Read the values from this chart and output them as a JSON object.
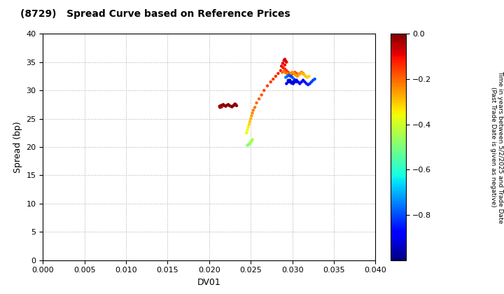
{
  "title": "(8729)   Spread Curve based on Reference Prices",
  "xlabel": "DV01",
  "ylabel": "Spread (bp)",
  "xlim": [
    0.0,
    0.04
  ],
  "ylim": [
    0,
    40
  ],
  "xticks": [
    0.0,
    0.005,
    0.01,
    0.015,
    0.02,
    0.025,
    0.03,
    0.035,
    0.04
  ],
  "yticks": [
    0,
    5,
    10,
    15,
    20,
    25,
    30,
    35,
    40
  ],
  "colorbar_label": "Time in years between 5/2/2025 and Trade Date\n(Past Trade Date is given as negative)",
  "cmap": "jet",
  "vmin": -1.0,
  "vmax": 0.0,
  "colorbar_ticks": [
    0.0,
    -0.2,
    -0.4,
    -0.6,
    -0.8
  ],
  "points": [
    {
      "dv01": 0.02125,
      "spread": 27.2,
      "time": -0.01
    },
    {
      "dv01": 0.0214,
      "spread": 27.3,
      "time": -0.01
    },
    {
      "dv01": 0.02155,
      "spread": 27.4,
      "time": -0.005
    },
    {
      "dv01": 0.0217,
      "spread": 27.5,
      "time": -0.005
    },
    {
      "dv01": 0.02185,
      "spread": 27.3,
      "time": -0.01
    },
    {
      "dv01": 0.022,
      "spread": 27.2,
      "time": -0.015
    },
    {
      "dv01": 0.02215,
      "spread": 27.4,
      "time": -0.01
    },
    {
      "dv01": 0.0223,
      "spread": 27.5,
      "time": -0.005
    },
    {
      "dv01": 0.02245,
      "spread": 27.3,
      "time": -0.01
    },
    {
      "dv01": 0.0226,
      "spread": 27.2,
      "time": -0.02
    },
    {
      "dv01": 0.02275,
      "spread": 27.1,
      "time": -0.02
    },
    {
      "dv01": 0.0229,
      "spread": 27.3,
      "time": -0.015
    },
    {
      "dv01": 0.023,
      "spread": 27.4,
      "time": -0.01
    },
    {
      "dv01": 0.0231,
      "spread": 27.6,
      "time": -0.005
    },
    {
      "dv01": 0.0232,
      "spread": 27.5,
      "time": -0.01
    },
    {
      "dv01": 0.0233,
      "spread": 27.3,
      "time": -0.02
    },
    {
      "dv01": 0.0213,
      "spread": 27.0,
      "time": -0.03
    },
    {
      "dv01": 0.0215,
      "spread": 27.1,
      "time": -0.04
    },
    {
      "dv01": 0.0248,
      "spread": 20.5,
      "time": -0.44
    },
    {
      "dv01": 0.02495,
      "spread": 20.8,
      "time": -0.45
    },
    {
      "dv01": 0.0251,
      "spread": 21.1,
      "time": -0.46
    },
    {
      "dv01": 0.0249,
      "spread": 20.6,
      "time": -0.47
    },
    {
      "dv01": 0.02505,
      "spread": 20.9,
      "time": -0.45
    },
    {
      "dv01": 0.0247,
      "spread": 20.4,
      "time": -0.48
    },
    {
      "dv01": 0.0246,
      "spread": 20.3,
      "time": -0.49
    },
    {
      "dv01": 0.0252,
      "spread": 21.3,
      "time": -0.44
    },
    {
      "dv01": 0.0245,
      "spread": 22.5,
      "time": -0.38
    },
    {
      "dv01": 0.0246,
      "spread": 23.0,
      "time": -0.36
    },
    {
      "dv01": 0.0247,
      "spread": 23.5,
      "time": -0.34
    },
    {
      "dv01": 0.0248,
      "spread": 24.0,
      "time": -0.32
    },
    {
      "dv01": 0.0249,
      "spread": 24.5,
      "time": -0.3
    },
    {
      "dv01": 0.025,
      "spread": 25.0,
      "time": -0.28
    },
    {
      "dv01": 0.0251,
      "spread": 25.5,
      "time": -0.26
    },
    {
      "dv01": 0.0252,
      "spread": 26.0,
      "time": -0.24
    },
    {
      "dv01": 0.0253,
      "spread": 26.5,
      "time": -0.22
    },
    {
      "dv01": 0.0255,
      "spread": 27.0,
      "time": -0.21
    },
    {
      "dv01": 0.0257,
      "spread": 27.8,
      "time": -0.2
    },
    {
      "dv01": 0.026,
      "spread": 28.5,
      "time": -0.19
    },
    {
      "dv01": 0.0263,
      "spread": 29.2,
      "time": -0.18
    },
    {
      "dv01": 0.0266,
      "spread": 30.0,
      "time": -0.17
    },
    {
      "dv01": 0.027,
      "spread": 30.8,
      "time": -0.16
    },
    {
      "dv01": 0.0274,
      "spread": 31.5,
      "time": -0.15
    },
    {
      "dv01": 0.0277,
      "spread": 32.0,
      "time": -0.145
    },
    {
      "dv01": 0.028,
      "spread": 32.5,
      "time": -0.14
    },
    {
      "dv01": 0.0283,
      "spread": 33.0,
      "time": -0.13
    },
    {
      "dv01": 0.0286,
      "spread": 33.5,
      "time": -0.12
    },
    {
      "dv01": 0.0289,
      "spread": 34.0,
      "time": -0.11
    },
    {
      "dv01": 0.0291,
      "spread": 34.5,
      "time": -0.1
    },
    {
      "dv01": 0.0293,
      "spread": 35.0,
      "time": -0.09
    },
    {
      "dv01": 0.0292,
      "spread": 35.2,
      "time": -0.085
    },
    {
      "dv01": 0.0291,
      "spread": 35.5,
      "time": -0.08
    },
    {
      "dv01": 0.029,
      "spread": 35.3,
      "time": -0.082
    },
    {
      "dv01": 0.02885,
      "spread": 34.8,
      "time": -0.09
    },
    {
      "dv01": 0.0287,
      "spread": 34.3,
      "time": -0.095
    },
    {
      "dv01": 0.0291,
      "spread": 33.8,
      "time": -0.13
    },
    {
      "dv01": 0.0293,
      "spread": 33.5,
      "time": -0.135
    },
    {
      "dv01": 0.0295,
      "spread": 33.2,
      "time": -0.14
    },
    {
      "dv01": 0.0297,
      "spread": 33.0,
      "time": -0.145
    },
    {
      "dv01": 0.0299,
      "spread": 32.8,
      "time": -0.15
    },
    {
      "dv01": 0.0301,
      "spread": 33.0,
      "time": -0.16
    },
    {
      "dv01": 0.0303,
      "spread": 33.2,
      "time": -0.17
    },
    {
      "dv01": 0.0305,
      "spread": 33.0,
      "time": -0.175
    },
    {
      "dv01": 0.0307,
      "spread": 32.8,
      "time": -0.18
    },
    {
      "dv01": 0.0309,
      "spread": 33.0,
      "time": -0.185
    },
    {
      "dv01": 0.0311,
      "spread": 33.2,
      "time": -0.19
    },
    {
      "dv01": 0.0313,
      "spread": 33.0,
      "time": -0.195
    },
    {
      "dv01": 0.0288,
      "spread": 33.2,
      "time": -0.2
    },
    {
      "dv01": 0.029,
      "spread": 33.4,
      "time": -0.205
    },
    {
      "dv01": 0.0292,
      "spread": 33.1,
      "time": -0.21
    },
    {
      "dv01": 0.0294,
      "spread": 33.0,
      "time": -0.215
    },
    {
      "dv01": 0.0296,
      "spread": 32.8,
      "time": -0.22
    },
    {
      "dv01": 0.0294,
      "spread": 32.5,
      "time": -0.225
    },
    {
      "dv01": 0.0296,
      "spread": 32.7,
      "time": -0.23
    },
    {
      "dv01": 0.0298,
      "spread": 33.0,
      "time": -0.235
    },
    {
      "dv01": 0.03,
      "spread": 33.2,
      "time": -0.24
    },
    {
      "dv01": 0.0302,
      "spread": 33.0,
      "time": -0.245
    },
    {
      "dv01": 0.0304,
      "spread": 32.7,
      "time": -0.25
    },
    {
      "dv01": 0.0306,
      "spread": 32.5,
      "time": -0.255
    },
    {
      "dv01": 0.0308,
      "spread": 32.8,
      "time": -0.26
    },
    {
      "dv01": 0.031,
      "spread": 33.1,
      "time": -0.27
    },
    {
      "dv01": 0.0312,
      "spread": 33.0,
      "time": -0.28
    },
    {
      "dv01": 0.0314,
      "spread": 32.8,
      "time": -0.29
    },
    {
      "dv01": 0.0316,
      "spread": 32.5,
      "time": -0.3
    },
    {
      "dv01": 0.0318,
      "spread": 32.3,
      "time": -0.31
    },
    {
      "dv01": 0.032,
      "spread": 32.5,
      "time": -0.32
    },
    {
      "dv01": 0.0292,
      "spread": 32.3,
      "time": -0.75
    },
    {
      "dv01": 0.0294,
      "spread": 32.5,
      "time": -0.77
    },
    {
      "dv01": 0.0296,
      "spread": 32.7,
      "time": -0.79
    },
    {
      "dv01": 0.0298,
      "spread": 32.5,
      "time": -0.81
    },
    {
      "dv01": 0.03,
      "spread": 32.3,
      "time": -0.8
    },
    {
      "dv01": 0.0302,
      "spread": 32.0,
      "time": -0.78
    },
    {
      "dv01": 0.0295,
      "spread": 31.8,
      "time": -0.83
    },
    {
      "dv01": 0.0297,
      "spread": 31.5,
      "time": -0.85
    },
    {
      "dv01": 0.0299,
      "spread": 31.3,
      "time": -0.87
    },
    {
      "dv01": 0.0301,
      "spread": 31.5,
      "time": -0.86
    },
    {
      "dv01": 0.0303,
      "spread": 31.8,
      "time": -0.84
    },
    {
      "dv01": 0.0305,
      "spread": 31.5,
      "time": -0.82
    },
    {
      "dv01": 0.0293,
      "spread": 31.2,
      "time": -0.9
    },
    {
      "dv01": 0.0295,
      "spread": 31.5,
      "time": -0.91
    },
    {
      "dv01": 0.0297,
      "spread": 31.8,
      "time": -0.92
    },
    {
      "dv01": 0.0299,
      "spread": 31.5,
      "time": -0.93
    },
    {
      "dv01": 0.0301,
      "spread": 31.2,
      "time": -0.94
    },
    {
      "dv01": 0.0303,
      "spread": 31.5,
      "time": -0.92
    },
    {
      "dv01": 0.0305,
      "spread": 31.8,
      "time": -0.91
    },
    {
      "dv01": 0.0307,
      "spread": 31.5,
      "time": -0.9
    },
    {
      "dv01": 0.0309,
      "spread": 31.2,
      "time": -0.89
    },
    {
      "dv01": 0.0311,
      "spread": 31.5,
      "time": -0.88
    },
    {
      "dv01": 0.0313,
      "spread": 31.8,
      "time": -0.87
    },
    {
      "dv01": 0.0315,
      "spread": 31.5,
      "time": -0.86
    },
    {
      "dv01": 0.0317,
      "spread": 31.2,
      "time": -0.85
    },
    {
      "dv01": 0.0319,
      "spread": 31.0,
      "time": -0.84
    },
    {
      "dv01": 0.0321,
      "spread": 31.2,
      "time": -0.83
    },
    {
      "dv01": 0.0323,
      "spread": 31.5,
      "time": -0.82
    },
    {
      "dv01": 0.0325,
      "spread": 31.8,
      "time": -0.81
    },
    {
      "dv01": 0.0327,
      "spread": 32.0,
      "time": -0.8
    }
  ]
}
